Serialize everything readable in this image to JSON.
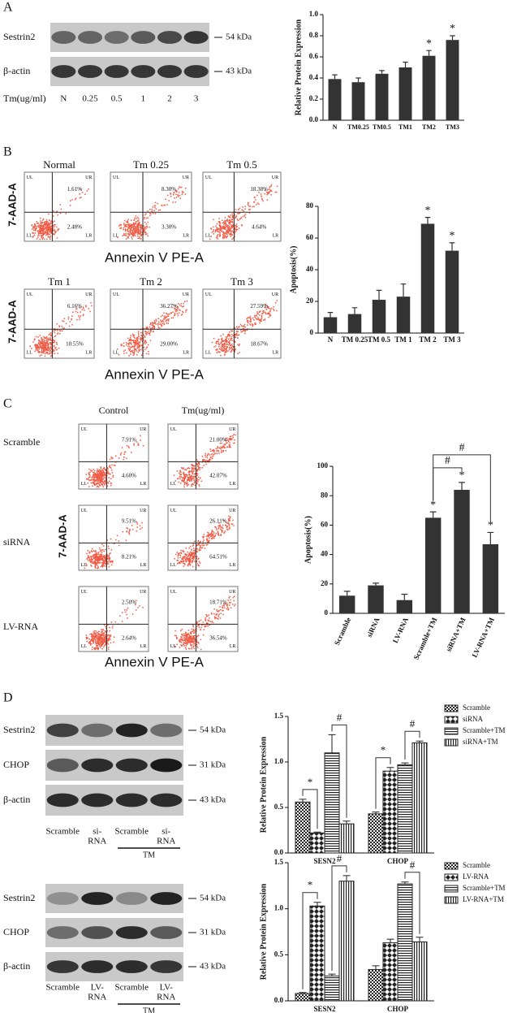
{
  "panels": [
    "A",
    "B",
    "C",
    "D"
  ],
  "blots": [
    {
      "rows": [
        {
          "label": "Sestrin2",
          "size": "54 kDa"
        },
        {
          "label": "β-actin",
          "size": "43 kDa"
        }
      ],
      "axis_label": "Tm(ug/ml)",
      "lanes": [
        [
          "N"
        ],
        [
          "0.25"
        ],
        [
          "0.5"
        ],
        [
          "1"
        ],
        [
          "2"
        ],
        [
          "3"
        ]
      ]
    },
    {
      "rows": [
        {
          "label": "Sestrin2",
          "size": "54 kDa"
        },
        {
          "label": "CHOP",
          "size": "31 kDa"
        },
        {
          "label": "β-actin",
          "size": "43 kDa"
        }
      ],
      "lanes": [
        [
          "Scramble"
        ],
        [
          "si-",
          "RNA"
        ],
        [
          "Scramble"
        ],
        [
          "si-",
          "RNA"
        ]
      ],
      "group_label": "TM"
    },
    {
      "rows": [
        {
          "label": "Sestrin2",
          "size": "54 kDa"
        },
        {
          "label": "CHOP",
          "size": "31 kDa"
        },
        {
          "label": "β-actin",
          "size": "43 kDa"
        }
      ],
      "lanes": [
        [
          "Scramble"
        ],
        [
          "LV-",
          "RNA"
        ],
        [
          "Scramble"
        ],
        [
          "LV-",
          "RNA"
        ]
      ],
      "group_label": "TM"
    }
  ],
  "flow": [
    {
      "y_label": "7-AAD-A",
      "x_label": "Annexin V PE-A",
      "quadrants": [
        "UL",
        "UR",
        "LL",
        "LR"
      ],
      "plots": [
        {
          "title": "Normal",
          "ur": "1.61%",
          "lr": "2.48%"
        },
        {
          "title": "Tm 0.25",
          "ur": "8.30%",
          "lr": "3.30%"
        },
        {
          "title": "Tm 0.5",
          "ur": "18.38%",
          "lr": "4.64%"
        },
        {
          "title": "Tm 1",
          "ur": "6.16%",
          "lr": "10.55%"
        },
        {
          "title": "Tm 2",
          "ur": "36.27%",
          "lr": "29.00%"
        },
        {
          "title": "Tm 3",
          "ur": "27.59%",
          "lr": "18.67%"
        }
      ]
    },
    {
      "y_label": "7-AAD-A",
      "x_label": "Annexin V PE-A",
      "quadrants": [
        "UL",
        "UR",
        "LL",
        "LR"
      ],
      "column_labels": [
        "Control",
        "Tm(ug/ml)"
      ],
      "row_labels": [
        "Scramble",
        "siRNA",
        "LV-RNA"
      ],
      "plots": [
        {
          "ur": "7.91%",
          "lr": "4.60%"
        },
        {
          "ur": "21.00%",
          "lr": "42.07%"
        },
        {
          "ur": "9.51%",
          "lr": "8.21%"
        },
        {
          "ur": "26.11%",
          "lr": "64.51%"
        },
        {
          "ur": "2.50%",
          "lr": "2.64%"
        },
        {
          "ur": "18.71%",
          "lr": "36.54%"
        }
      ]
    }
  ],
  "chart_data": [
    {
      "type": "bar",
      "y_label": "Relative Protein Expression",
      "color": "#333333",
      "categories": [
        "N",
        "TM0.25",
        "TM0.5",
        "TM1",
        "TM2",
        "TM3"
      ],
      "values": [
        0.39,
        0.36,
        0.44,
        0.5,
        0.61,
        0.76
      ],
      "errors": [
        0.04,
        0.04,
        0.03,
        0.05,
        0.05,
        0.04
      ],
      "markers": [
        null,
        null,
        null,
        null,
        "*",
        "*"
      ],
      "ylim": [
        0,
        1.0
      ],
      "yticks": [
        {
          "value": 0,
          "label": "0.0"
        },
        0.2,
        0.4,
        0.6,
        0.8,
        {
          "value": 1,
          "label": "1.0"
        }
      ]
    },
    {
      "type": "bar",
      "y_label": "Apoptosis(%)",
      "color": "#333333",
      "categories": [
        "N",
        "TM 0.25",
        "TM 0.5",
        "TM 1",
        "TM 2",
        "TM 3"
      ],
      "values": [
        10,
        12,
        21,
        23,
        69,
        52
      ],
      "errors": [
        3,
        4,
        6,
        8,
        4,
        5
      ],
      "markers": [
        null,
        null,
        null,
        null,
        "*",
        "*"
      ],
      "ylim": [
        0,
        80
      ],
      "yticks": [
        0,
        20,
        40,
        60,
        80
      ]
    },
    {
      "type": "bar",
      "y_label": "Apoptosis(%)",
      "color": "#333333",
      "categories": [
        "Scramble",
        "siRNA",
        "LV-RNA",
        "Scramble+TM",
        "siRNA+TM",
        "LV-RNA+TM"
      ],
      "values": [
        12,
        19,
        9,
        65,
        84,
        47
      ],
      "errors": [
        3,
        1.5,
        4,
        4,
        5,
        8
      ],
      "markers": [
        null,
        null,
        null,
        "*",
        "*",
        "*"
      ],
      "brackets": [
        {
          "between": [
            3,
            4
          ],
          "label": "#"
        },
        {
          "between": [
            3,
            5
          ],
          "label": "#"
        }
      ],
      "ylim": [
        0,
        100
      ],
      "yticks": [
        0,
        20,
        40,
        60,
        80,
        100
      ]
    },
    {
      "type": "grouped-bar",
      "y_label": "Relative Protein Expression",
      "categories": [
        "SESN2",
        "CHOP"
      ],
      "series": [
        {
          "name": "Scramble",
          "color": "#222222",
          "pattern": "dots",
          "values": [
            0.56,
            0.43
          ],
          "errors": [
            0.03,
            0.02
          ]
        },
        {
          "name": "siRNA",
          "color": "#222222",
          "pattern": "checker",
          "values": [
            0.22,
            0.9
          ],
          "errors": [
            0.01,
            0.04
          ]
        },
        {
          "name": "Scramble+TM",
          "color": "#222222",
          "pattern": "hlines",
          "values": [
            1.1,
            0.97
          ],
          "errors": [
            0.2,
            0.02
          ]
        },
        {
          "name": "siRNA+TM",
          "color": "#222222",
          "pattern": "vlines",
          "values": [
            0.32,
            1.21
          ],
          "errors": [
            0.03,
            0.02
          ]
        }
      ],
      "brackets": [
        {
          "category": 0,
          "between": [
            0,
            1
          ],
          "label": "*"
        },
        {
          "category": 0,
          "between": [
            2,
            3
          ],
          "label": "#"
        },
        {
          "category": 1,
          "between": [
            0,
            1
          ],
          "label": "*"
        },
        {
          "category": 1,
          "between": [
            2,
            3
          ],
          "label": "#"
        }
      ],
      "ylim": [
        0,
        1.5
      ],
      "yticks": [
        {
          "value": 0,
          "label": "0.0"
        },
        0.5,
        {
          "value": 1,
          "label": "1.0"
        },
        1.5
      ]
    },
    {
      "type": "grouped-bar",
      "y_label": "Relative Protein Expression",
      "categories": [
        "SESN2",
        "CHOP"
      ],
      "series": [
        {
          "name": "Scramble",
          "color": "#222222",
          "pattern": "dots",
          "values": [
            0.08,
            0.34
          ],
          "errors": [
            0.01,
            0.04
          ]
        },
        {
          "name": "LV-RNA",
          "color": "#222222",
          "pattern": "checker",
          "values": [
            1.03,
            0.63
          ],
          "errors": [
            0.04,
            0.04
          ]
        },
        {
          "name": "Scramble+TM",
          "color": "#222222",
          "pattern": "hlines",
          "values": [
            0.27,
            1.27
          ],
          "errors": [
            0.02,
            0.02
          ]
        },
        {
          "name": "LV-RNA+TM",
          "color": "#222222",
          "pattern": "vlines",
          "values": [
            1.3,
            0.64
          ],
          "errors": [
            0.06,
            0.05
          ]
        }
      ],
      "brackets": [
        {
          "category": 0,
          "between": [
            0,
            1
          ],
          "label": "*"
        },
        {
          "category": 0,
          "between": [
            2,
            3
          ],
          "label": "#"
        },
        {
          "category": 1,
          "between": [
            2,
            3
          ],
          "label": "#"
        }
      ],
      "ylim": [
        0,
        1.5
      ],
      "yticks": [
        {
          "value": 0,
          "label": "0.0"
        },
        0.5,
        {
          "value": 1,
          "label": "1.0"
        },
        1.5
      ]
    }
  ]
}
